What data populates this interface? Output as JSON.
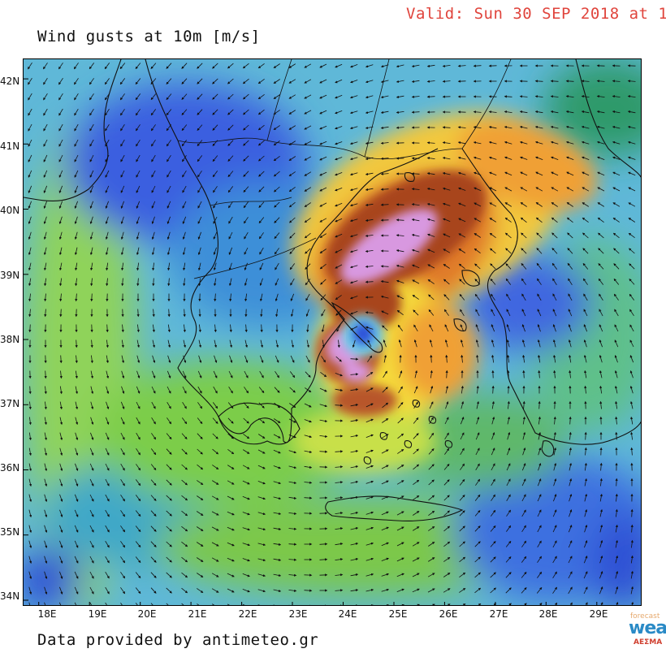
{
  "header": {
    "valid_text": "Valid: Sun 30 SEP 2018 at 1",
    "title": "Wind gusts at 10m [m/s]"
  },
  "footer": {
    "credit": "Data provided by antimeteo.gr"
  },
  "logo": {
    "line1": "forecast",
    "line2": "wea",
    "line3": "ΑΕΣΜΑ"
  },
  "map": {
    "latitude_labels": [
      "42N",
      "41N",
      "40N",
      "39N",
      "38N",
      "37N",
      "36N",
      "35N",
      "34N"
    ],
    "longitude_labels": [
      "18E",
      "19E",
      "20E",
      "21E",
      "22E",
      "23E",
      "24E",
      "25E",
      "26E",
      "27E",
      "28E",
      "29E"
    ],
    "lat_range": [
      33.9,
      42.3
    ],
    "lon_range": [
      17.7,
      29.9
    ],
    "cyclone_center": {
      "lat": 37.9,
      "lon": 24.3
    },
    "colors": {
      "calm_blue": "#2a4fd8",
      "light_blue": "#7fd6f0",
      "green": "#6fbf3a",
      "yellow_green": "#c8e04a",
      "yellow": "#f5dc3a",
      "orange": "#f09030",
      "brown": "#a8441c",
      "violet": "#d898e0",
      "coastline": "#111111"
    }
  }
}
